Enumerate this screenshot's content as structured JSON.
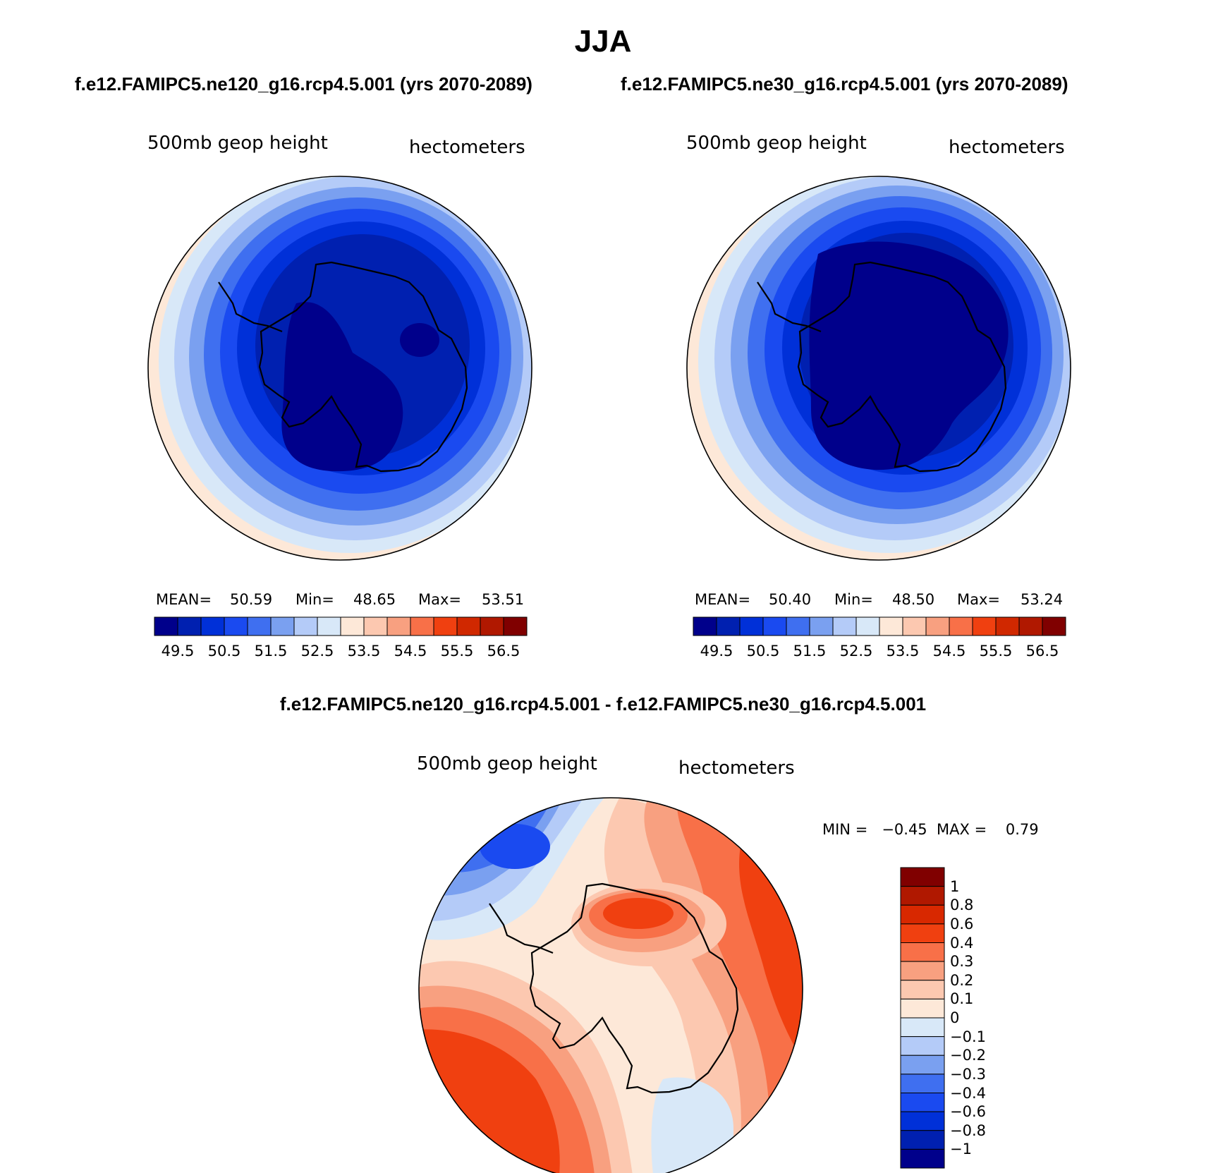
{
  "figure": {
    "title": "JJA",
    "panel_top_left": {
      "subtitle": "f.e12.FAMIPC5.ne120_g16.rcp4.5.001 (yrs 2070-2089)",
      "variable": "500mb geop height",
      "units": "hectometers",
      "mean_label": "MEAN=",
      "mean_value": "50.59",
      "min_label": "Min=",
      "min_value": "48.65",
      "max_label": "Max=",
      "max_value": "53.51"
    },
    "panel_top_right": {
      "subtitle": "f.e12.FAMIPC5.ne30_g16.rcp4.5.001 (yrs 2070-2089)",
      "variable": "500mb geop height",
      "units": "hectometers",
      "mean_label": "MEAN=",
      "mean_value": "50.40",
      "min_label": "Min=",
      "min_value": "48.50",
      "max_label": "Max=",
      "max_value": "53.24"
    },
    "panel_bottom": {
      "subtitle": "f.e12.FAMIPC5.ne120_g16.rcp4.5.001 - f.e12.FAMIPC5.ne30_g16.rcp4.5.001",
      "variable": "500mb geop height",
      "units": "hectometers",
      "minmax_text": "MIN =   −0.45  MAX =    0.79"
    },
    "colorbar_top": {
      "ticks": [
        "49.5",
        "50.5",
        "51.5",
        "52.5",
        "53.5",
        "54.5",
        "55.5",
        "56.5"
      ],
      "colors": [
        "#00008b",
        "#0020b0",
        "#0030d8",
        "#1a4af0",
        "#3f6ff0",
        "#7aa0f0",
        "#b4cbf8",
        "#d8e8f8",
        "#fde8d8",
        "#fcc8b0",
        "#f8a080",
        "#f87048",
        "#f04010",
        "#d02800",
        "#b01800",
        "#800000"
      ]
    },
    "colorbar_diff": {
      "ticks": [
        "1",
        "0.8",
        "0.6",
        "0.4",
        "0.3",
        "0.2",
        "0.1",
        "0",
        "−0.1",
        "−0.2",
        "−0.3",
        "−0.4",
        "−0.6",
        "−0.8",
        "−1"
      ],
      "colors": [
        "#800000",
        "#b01800",
        "#d82800",
        "#f04010",
        "#f87048",
        "#f8a080",
        "#fcc8b0",
        "#fde8d8",
        "#d8e8f8",
        "#b4cbf8",
        "#7aa0f0",
        "#3f6ff0",
        "#1a4af0",
        "#0030d8",
        "#0020b0",
        "#00008b"
      ]
    }
  }
}
